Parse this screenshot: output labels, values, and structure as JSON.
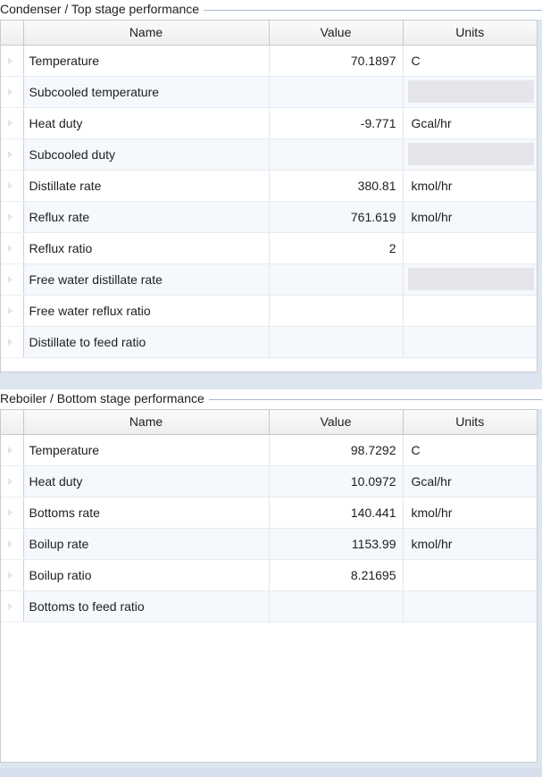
{
  "condenser": {
    "title": "Condenser / Top stage performance",
    "columns": {
      "name": "Name",
      "value": "Value",
      "units": "Units"
    },
    "rows": [
      {
        "name": "Temperature",
        "value": "70.1897",
        "units": "C",
        "units_disabled": false
      },
      {
        "name": "Subcooled temperature",
        "value": "",
        "units": "",
        "units_disabled": true
      },
      {
        "name": "Heat duty",
        "value": "-9.771",
        "units": "Gcal/hr",
        "units_disabled": false
      },
      {
        "name": "Subcooled duty",
        "value": "",
        "units": "",
        "units_disabled": true
      },
      {
        "name": "Distillate rate",
        "value": "380.81",
        "units": "kmol/hr",
        "units_disabled": false
      },
      {
        "name": "Reflux rate",
        "value": "761.619",
        "units": "kmol/hr",
        "units_disabled": false
      },
      {
        "name": "Reflux ratio",
        "value": "2",
        "units": "",
        "units_disabled": false
      },
      {
        "name": "Free water distillate rate",
        "value": "",
        "units": "",
        "units_disabled": true
      },
      {
        "name": "Free water reflux ratio",
        "value": "",
        "units": "",
        "units_disabled": false
      },
      {
        "name": "Distillate to feed ratio",
        "value": "",
        "units": "",
        "units_disabled": false
      }
    ]
  },
  "reboiler": {
    "title": "Reboiler / Bottom stage performance",
    "columns": {
      "name": "Name",
      "value": "Value",
      "units": "Units"
    },
    "rows": [
      {
        "name": "Temperature",
        "value": "98.7292",
        "units": "C",
        "units_disabled": false
      },
      {
        "name": "Heat duty",
        "value": "10.0972",
        "units": "Gcal/hr",
        "units_disabled": false
      },
      {
        "name": "Bottoms rate",
        "value": "140.441",
        "units": "kmol/hr",
        "units_disabled": false
      },
      {
        "name": "Boilup rate",
        "value": "1153.99",
        "units": "kmol/hr",
        "units_disabled": false
      },
      {
        "name": "Boilup ratio",
        "value": "8.21695",
        "units": "",
        "units_disabled": false
      },
      {
        "name": "Bottoms to feed ratio",
        "value": "",
        "units": "",
        "units_disabled": false
      }
    ]
  },
  "icons": {
    "row_selector": "row-selector-triangle-icon"
  },
  "colors": {
    "header_bg": "#f2f2f2",
    "alt_row": "#f5f8fc",
    "disabled_cell": "#e6e6ea",
    "group_line": "#a9b9cc"
  }
}
